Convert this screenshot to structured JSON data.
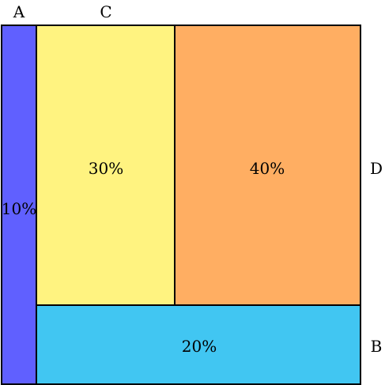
{
  "regions": {
    "a": {
      "label": "A",
      "percent": "10%",
      "color": "#6060ff"
    },
    "c": {
      "label": "C",
      "percent": "30%",
      "color": "#fff380"
    },
    "d": {
      "label": "D",
      "percent": "40%",
      "color": "#ffae62"
    },
    "b": {
      "label": "B",
      "percent": "20%",
      "color": "#41c6f2"
    }
  }
}
